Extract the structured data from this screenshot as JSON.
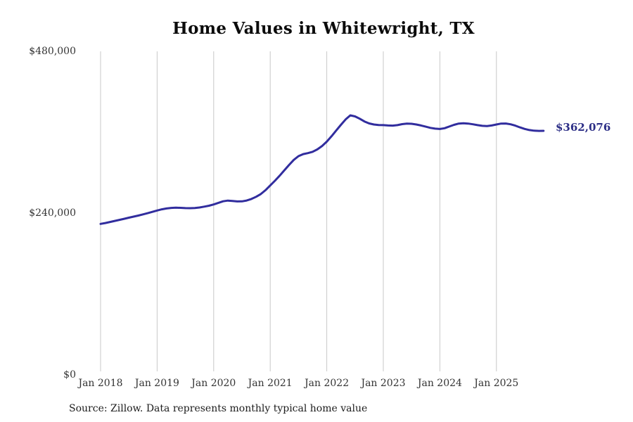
{
  "title": "Home Values in Whitewright, TX",
  "source_note": "Source: Zillow. Data represents monthly typical home value",
  "end_label": "$362,076",
  "colors": {
    "line": "#312d9e",
    "end_label": "#2c2e86",
    "gridline": "#c8c8c8",
    "tick_text": "#333333",
    "title_text": "#0b0b0b",
    "source_text": "#1c1c1c",
    "background": "#ffffff"
  },
  "chart_data": {
    "type": "line",
    "title": "Home Values in Whitewright, TX",
    "xlabel": "",
    "ylabel": "",
    "ylim": [
      0,
      480000
    ],
    "grid": "vertical-only",
    "legend": "none",
    "last_point_label": "$362,076",
    "last_point_value": 362076,
    "yticks": [
      {
        "value": 0,
        "label": "$0"
      },
      {
        "value": 240000,
        "label": "$240,000"
      },
      {
        "value": 480000,
        "label": "$480,000"
      }
    ],
    "xticks": [
      {
        "index": 0,
        "label": "Jan 2018"
      },
      {
        "index": 12,
        "label": "Jan 2019"
      },
      {
        "index": 24,
        "label": "Jan 2020"
      },
      {
        "index": 36,
        "label": "Jan 2021"
      },
      {
        "index": 48,
        "label": "Jan 2022"
      },
      {
        "index": 60,
        "label": "Jan 2023"
      },
      {
        "index": 72,
        "label": "Jan 2024"
      },
      {
        "index": 84,
        "label": "Jan 2025"
      }
    ],
    "x": [
      "2018-01",
      "2018-02",
      "2018-03",
      "2018-04",
      "2018-05",
      "2018-06",
      "2018-07",
      "2018-08",
      "2018-09",
      "2018-10",
      "2018-11",
      "2018-12",
      "2019-01",
      "2019-02",
      "2019-03",
      "2019-04",
      "2019-05",
      "2019-06",
      "2019-07",
      "2019-08",
      "2019-09",
      "2019-10",
      "2019-11",
      "2019-12",
      "2020-01",
      "2020-02",
      "2020-03",
      "2020-04",
      "2020-05",
      "2020-06",
      "2020-07",
      "2020-08",
      "2020-09",
      "2020-10",
      "2020-11",
      "2020-12",
      "2021-01",
      "2021-02",
      "2021-03",
      "2021-04",
      "2021-05",
      "2021-06",
      "2021-07",
      "2021-08",
      "2021-09",
      "2021-10",
      "2021-11",
      "2021-12",
      "2022-01",
      "2022-02",
      "2022-03",
      "2022-04",
      "2022-05",
      "2022-06",
      "2022-07",
      "2022-08",
      "2022-09",
      "2022-10",
      "2022-11",
      "2022-12",
      "2023-01",
      "2023-02",
      "2023-03",
      "2023-04",
      "2023-05",
      "2023-06",
      "2023-07",
      "2023-08",
      "2023-09",
      "2023-10",
      "2023-11",
      "2023-12",
      "2024-01",
      "2024-02",
      "2024-03",
      "2024-04",
      "2024-05",
      "2024-06",
      "2024-07",
      "2024-08",
      "2024-09",
      "2024-10",
      "2024-11",
      "2024-12",
      "2025-01",
      "2025-02",
      "2025-03",
      "2025-04",
      "2025-05",
      "2025-06",
      "2025-07",
      "2025-08",
      "2025-09",
      "2025-10",
      "2025-11"
    ],
    "series": [
      {
        "name": "Typical home value",
        "values": [
          224000,
          225300,
          226800,
          228400,
          230000,
          231600,
          233200,
          234800,
          236400,
          238100,
          239900,
          241900,
          243900,
          245600,
          246900,
          247700,
          248000,
          247800,
          247400,
          247300,
          247600,
          248400,
          249600,
          251000,
          252800,
          255200,
          257500,
          258600,
          258100,
          257300,
          257400,
          258700,
          261000,
          264200,
          268300,
          274000,
          281000,
          288000,
          295500,
          303500,
          311500,
          319000,
          324500,
          327500,
          329000,
          331000,
          334500,
          339500,
          346000,
          354000,
          362500,
          371000,
          379000,
          385000,
          383500,
          380000,
          376000,
          373000,
          371500,
          370800,
          370500,
          370000,
          369800,
          370500,
          372000,
          372800,
          372500,
          371500,
          370000,
          368200,
          366500,
          365300,
          364800,
          366000,
          368500,
          371000,
          372800,
          373300,
          372800,
          371800,
          370500,
          369500,
          369200,
          370000,
          371500,
          372800,
          372900,
          371800,
          369800,
          367200,
          364900,
          363200,
          362300,
          362000,
          362076
        ]
      }
    ]
  }
}
